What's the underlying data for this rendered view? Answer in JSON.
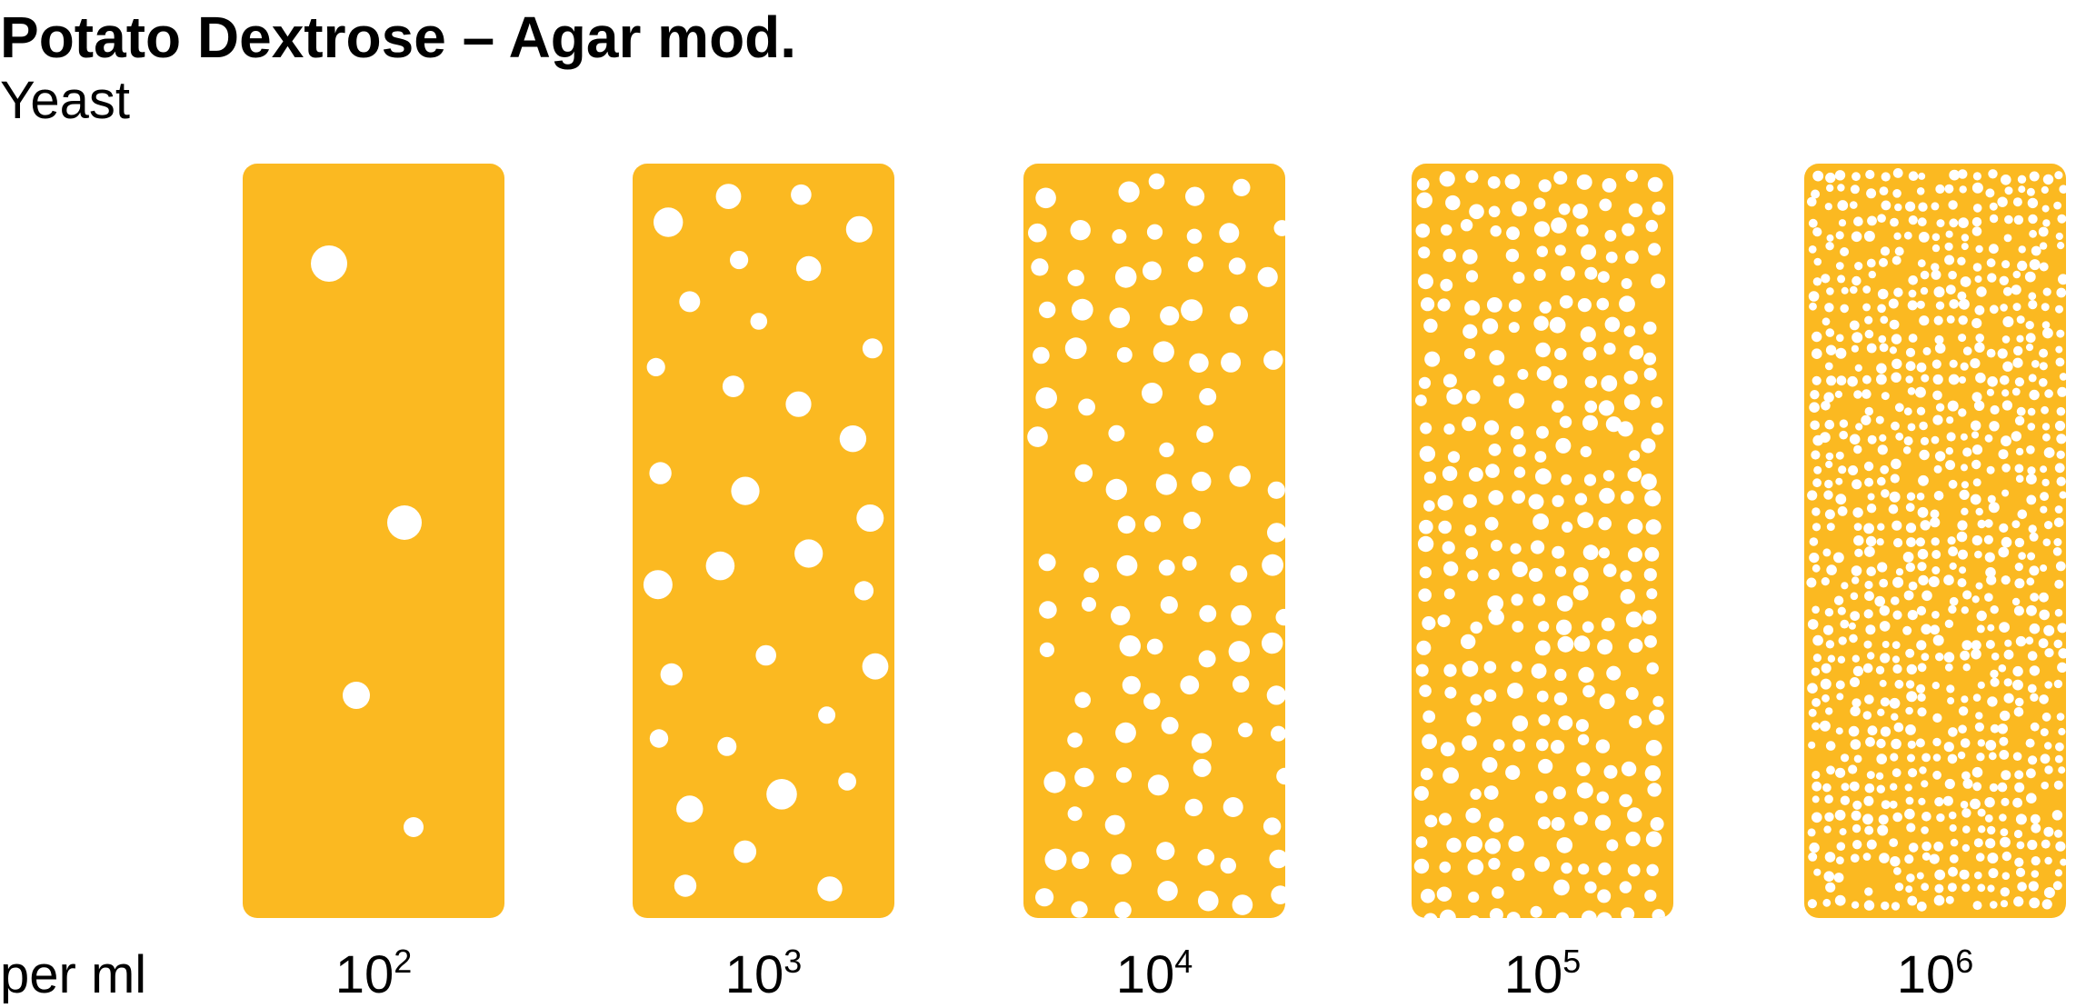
{
  "title": "Potato Dextrose – Agar mod.",
  "subtitle": "Yeast",
  "unit_label": "per ml",
  "strip_color": "#FBB921",
  "colony_color": "#ffffff",
  "samples": [
    {
      "base": "10",
      "exponent": "2"
    },
    {
      "base": "10",
      "exponent": "3"
    },
    {
      "base": "10",
      "exponent": "4"
    },
    {
      "base": "10",
      "exponent": "5"
    },
    {
      "base": "10",
      "exponent": "6"
    }
  ]
}
